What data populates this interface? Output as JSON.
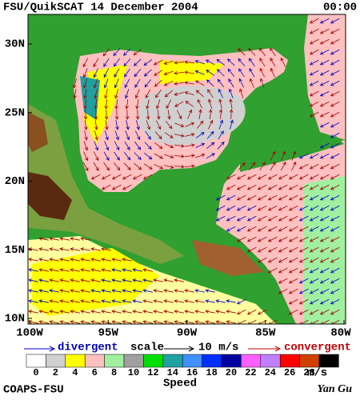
{
  "header": {
    "title": "FSU/QuikSCAT 14 December 2004",
    "time": "00:00"
  },
  "map": {
    "lat_labels": [
      "30N",
      "25N",
      "20N",
      "15N",
      "10N"
    ],
    "lon_labels": [
      "100W",
      "95W",
      "90W",
      "85W",
      "80W"
    ]
  },
  "legend": {
    "divergent": "divergent",
    "scale": "scale",
    "scale_value": "10 m/s",
    "convergent": "convergent"
  },
  "colorbar": {
    "ticks": [
      "0",
      "2",
      "4",
      "6",
      "8",
      "10",
      "12",
      "14",
      "16",
      "18",
      "20",
      "22",
      "24",
      "26",
      "28"
    ],
    "unit": "m/s",
    "title": "Speed",
    "colors": [
      "#ffffff",
      "#d0d0d0",
      "#ffff00",
      "#ffc0c0",
      "#a0f0a0",
      "#a0a0a0",
      "#00e000",
      "#20a0a0",
      "#4090ff",
      "#0030ff",
      "#0000a0",
      "#ff60ff",
      "#c080ff",
      "#ff0000",
      "#d04000",
      "#000000"
    ]
  },
  "footer": {
    "credit": "COAPS-FSU",
    "author": "Yan Gu"
  }
}
